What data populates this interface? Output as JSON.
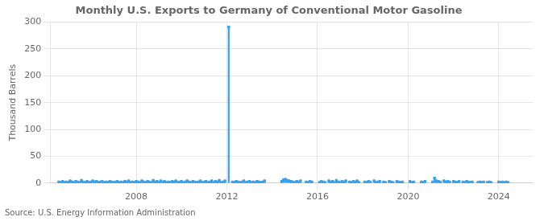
{
  "chart_data": {
    "type": "stem",
    "title": "Monthly U.S. Exports to Germany of Conventional Motor Gasoline",
    "y_label": "Thousand Barrels",
    "annotations": [
      "Source: U.S. Energy Information Administration"
    ],
    "marker": "square",
    "grid": true,
    "xlim": [
      2004.2,
      2025.5
    ],
    "ylim": [
      0,
      300
    ],
    "xticks": [
      2008,
      2012,
      2016,
      2020,
      2024
    ],
    "yticks": [
      0,
      50,
      100,
      150,
      200,
      250,
      300
    ],
    "x": [
      2004.583,
      2004.667,
      2004.75,
      2004.833,
      2004.917,
      2005.0,
      2005.083,
      2005.167,
      2005.25,
      2005.333,
      2005.417,
      2005.5,
      2005.583,
      2005.667,
      2005.75,
      2005.833,
      2005.917,
      2006.0,
      2006.083,
      2006.167,
      2006.25,
      2006.333,
      2006.417,
      2006.5,
      2006.583,
      2006.667,
      2006.75,
      2006.833,
      2006.917,
      2007.0,
      2007.083,
      2007.167,
      2007.25,
      2007.333,
      2007.417,
      2007.5,
      2007.583,
      2007.667,
      2007.75,
      2007.833,
      2007.917,
      2008.0,
      2008.083,
      2008.167,
      2008.25,
      2008.333,
      2008.417,
      2008.5,
      2008.583,
      2008.667,
      2008.75,
      2008.833,
      2008.917,
      2009.0,
      2009.083,
      2009.167,
      2009.25,
      2009.333,
      2009.417,
      2009.5,
      2009.583,
      2009.667,
      2009.75,
      2009.833,
      2009.917,
      2010.0,
      2010.083,
      2010.167,
      2010.25,
      2010.333,
      2010.417,
      2010.5,
      2010.583,
      2010.667,
      2010.75,
      2010.833,
      2010.917,
      2011.0,
      2011.083,
      2011.167,
      2011.25,
      2011.333,
      2011.417,
      2011.5,
      2011.583,
      2011.667,
      2011.75,
      2011.833,
      2011.917,
      2012.083,
      2012.25,
      2012.333,
      2012.417,
      2012.5,
      2012.583,
      2012.667,
      2012.75,
      2012.833,
      2012.917,
      2013.0,
      2013.083,
      2013.167,
      2013.25,
      2013.333,
      2013.417,
      2013.5,
      2013.583,
      2013.667,
      2014.417,
      2014.5,
      2014.583,
      2014.667,
      2014.75,
      2014.833,
      2014.917,
      2015.0,
      2015.083,
      2015.167,
      2015.25,
      2015.5,
      2015.583,
      2015.667,
      2015.75,
      2016.083,
      2016.167,
      2016.25,
      2016.333,
      2016.5,
      2016.583,
      2016.667,
      2016.75,
      2016.833,
      2016.917,
      2017.0,
      2017.083,
      2017.167,
      2017.25,
      2017.417,
      2017.5,
      2017.583,
      2017.667,
      2017.75,
      2017.833,
      2018.083,
      2018.167,
      2018.25,
      2018.333,
      2018.5,
      2018.583,
      2018.667,
      2018.75,
      2018.917,
      2019.0,
      2019.167,
      2019.25,
      2019.333,
      2019.5,
      2019.583,
      2019.667,
      2019.75,
      2020.083,
      2020.167,
      2020.25,
      2020.583,
      2020.667,
      2020.75,
      2021.083,
      2021.167,
      2021.25,
      2021.333,
      2021.417,
      2021.583,
      2021.667,
      2021.75,
      2021.833,
      2022.0,
      2022.083,
      2022.167,
      2022.25,
      2022.417,
      2022.5,
      2022.583,
      2022.667,
      2022.75,
      2022.833,
      2023.083,
      2023.167,
      2023.25,
      2023.333,
      2023.5,
      2023.583,
      2023.667,
      2024.0,
      2024.083,
      2024.167,
      2024.25,
      2024.333,
      2024.417
    ],
    "values": [
      2,
      1,
      3,
      1,
      2,
      1,
      4,
      2,
      1,
      3,
      2,
      1,
      5,
      2,
      1,
      3,
      1,
      2,
      4,
      2,
      3,
      1,
      2,
      3,
      1,
      2,
      1,
      3,
      2,
      1,
      2,
      3,
      1,
      2,
      1,
      3,
      2,
      4,
      1,
      2,
      1,
      3,
      2,
      1,
      4,
      2,
      1,
      3,
      2,
      1,
      5,
      2,
      3,
      1,
      4,
      2,
      3,
      1,
      2,
      1,
      3,
      2,
      4,
      1,
      2,
      3,
      1,
      2,
      4,
      2,
      1,
      3,
      2,
      1,
      2,
      4,
      1,
      2,
      3,
      1,
      2,
      4,
      1,
      3,
      2,
      5,
      1,
      2,
      4,
      291,
      2,
      1,
      3,
      2,
      1,
      2,
      4,
      1,
      2,
      3,
      1,
      2,
      1,
      3,
      2,
      1,
      2,
      4,
      3,
      6,
      7,
      5,
      4,
      3,
      2,
      1,
      3,
      2,
      4,
      2,
      1,
      3,
      2,
      1,
      3,
      2,
      1,
      4,
      2,
      3,
      1,
      5,
      2,
      1,
      3,
      2,
      4,
      2,
      1,
      3,
      2,
      4,
      1,
      2,
      1,
      3,
      2,
      4,
      1,
      2,
      3,
      2,
      1,
      3,
      2,
      1,
      3,
      2,
      1,
      2,
      3,
      1,
      2,
      2,
      1,
      3,
      2,
      9,
      4,
      3,
      2,
      4,
      2,
      3,
      2,
      3,
      2,
      1,
      3,
      2,
      1,
      3,
      2,
      1,
      2,
      1,
      2,
      1,
      2,
      1,
      2,
      1,
      2,
      1,
      2,
      1,
      2,
      1
    ]
  }
}
